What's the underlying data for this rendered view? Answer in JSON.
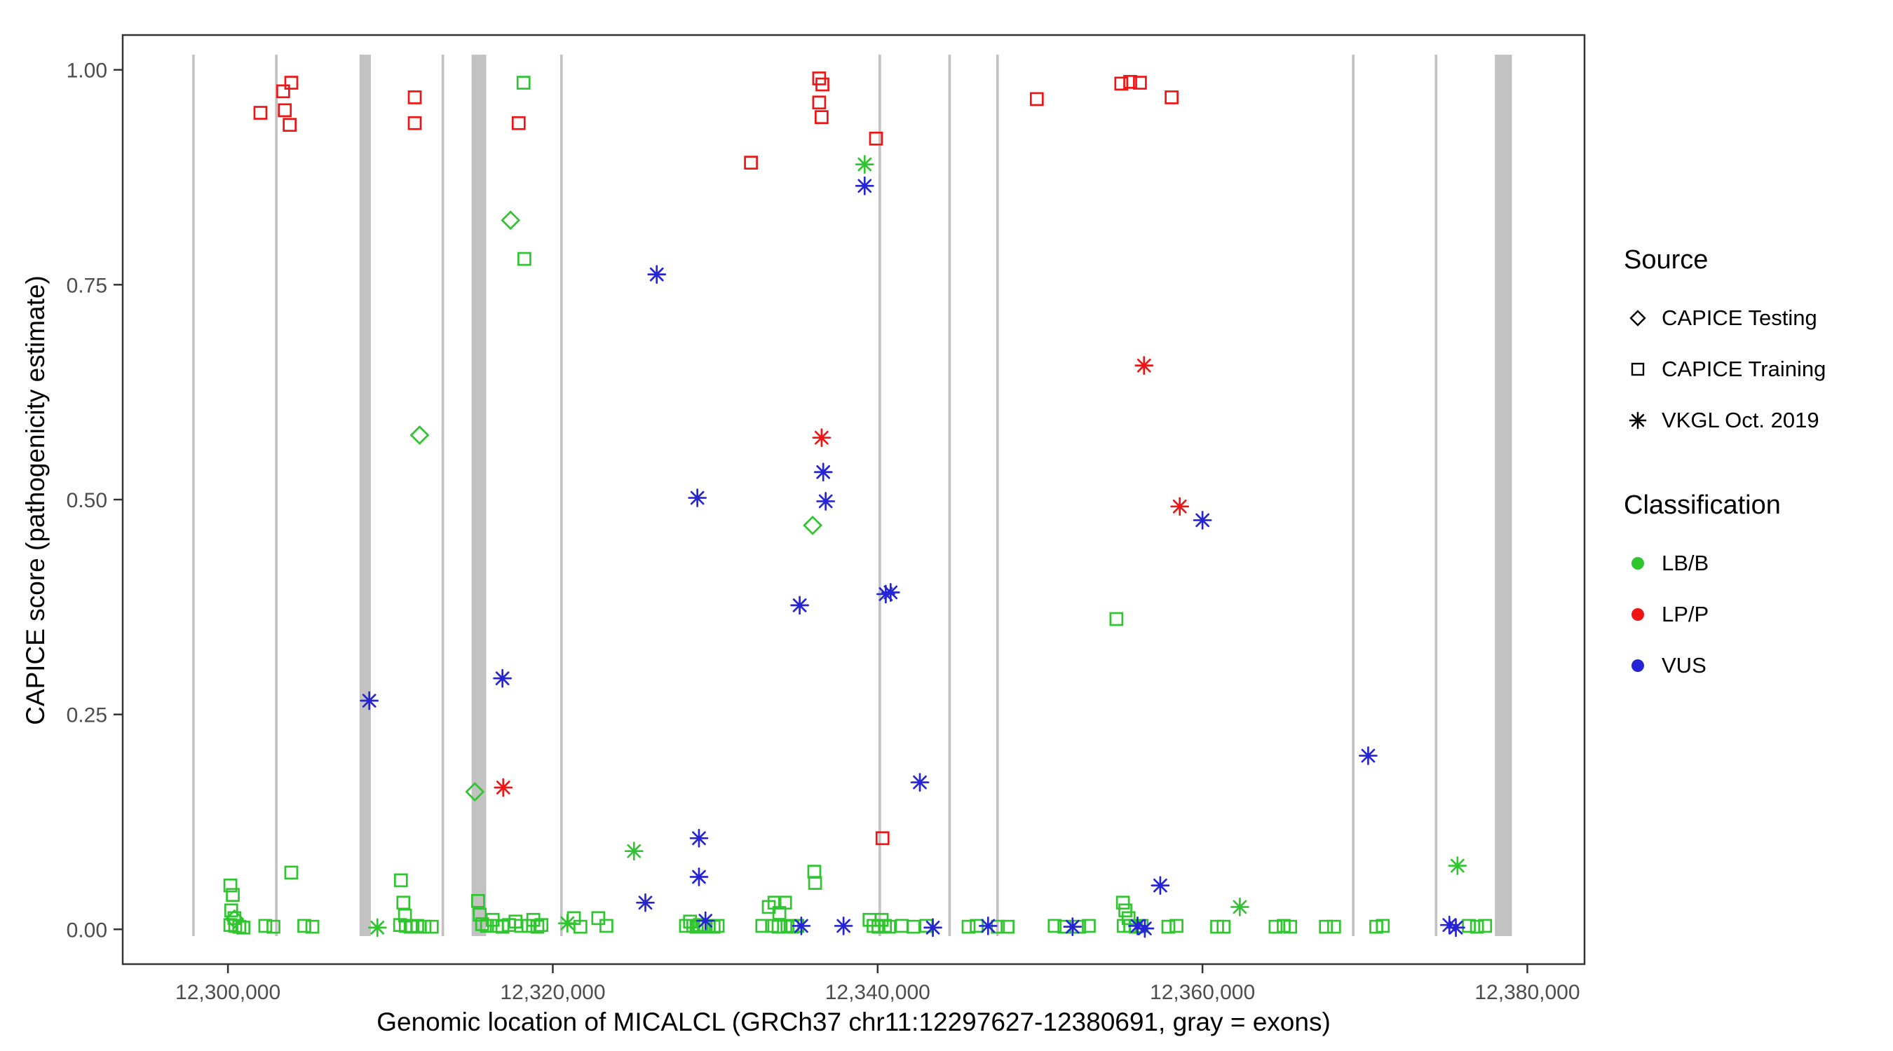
{
  "chart_data": {
    "type": "scatter",
    "title": "",
    "xlabel": "Genomic location of MICALCL (GRCh37 chr11:12297627-12380691, gray = exons)",
    "ylabel": "CAPICE score (pathogenicity estimate)",
    "xlim": [
      12293520,
      12383520
    ],
    "ylim": [
      -0.0405,
      1.0405
    ],
    "grid": "off",
    "legend_position": "right",
    "x_ticks": [
      12300000,
      12320000,
      12340000,
      12360000,
      12380000
    ],
    "x_tick_labels": [
      "12,300,000",
      "12,320,000",
      "12,340,000",
      "12,360,000",
      "12,380,000"
    ],
    "y_ticks": [
      0,
      0.25,
      0.5,
      0.75,
      1
    ],
    "y_tick_labels": [
      "0.00",
      "0.25",
      "0.50",
      "0.75",
      "1.00"
    ],
    "exon_color": "#C2C2C2",
    "panel_border_color": "#333333",
    "colors": {
      "LB/B": "#2FC52F",
      "LP/P": "#F01414",
      "VUS": "#2525D5"
    },
    "exons": [
      {
        "start": 12297800,
        "end": 12297950
      },
      {
        "start": 12302900,
        "end": 12303060
      },
      {
        "start": 12308100,
        "end": 12308800
      },
      {
        "start": 12313150,
        "end": 12313310
      },
      {
        "start": 12315000,
        "end": 12315900
      },
      {
        "start": 12320450,
        "end": 12320610
      },
      {
        "start": 12340050,
        "end": 12340210
      },
      {
        "start": 12344350,
        "end": 12344510
      },
      {
        "start": 12347300,
        "end": 12347460
      },
      {
        "start": 12369200,
        "end": 12369360
      },
      {
        "start": 12374300,
        "end": 12374460
      },
      {
        "start": 12378000,
        "end": 12379050
      }
    ],
    "series": [
      {
        "name": "CAPICE Testing / LB/B",
        "source": "CAPICE Testing",
        "classification": "LB/B",
        "shape": "diamond",
        "points": [
          [
            12300400,
            0.012
          ],
          [
            12311800,
            0.575
          ],
          [
            12315200,
            0.16
          ],
          [
            12317400,
            0.825
          ],
          [
            12336000,
            0.47
          ]
        ]
      },
      {
        "name": "CAPICE Training / LB/B",
        "source": "CAPICE Training",
        "classification": "LB/B",
        "shape": "square",
        "points": [
          [
            12300150,
            0.051
          ],
          [
            12300300,
            0.04
          ],
          [
            12300200,
            0.022
          ],
          [
            12300400,
            0.013
          ],
          [
            12300150,
            0.005
          ],
          [
            12300450,
            0.004
          ],
          [
            12300700,
            0.003
          ],
          [
            12300950,
            0.002
          ],
          [
            12302300,
            0.004
          ],
          [
            12302800,
            0.003
          ],
          [
            12303900,
            0.066
          ],
          [
            12304700,
            0.004
          ],
          [
            12305200,
            0.003
          ],
          [
            12310650,
            0.057
          ],
          [
            12310800,
            0.031
          ],
          [
            12310900,
            0.016
          ],
          [
            12310600,
            0.005
          ],
          [
            12310950,
            0.004
          ],
          [
            12311250,
            0.003
          ],
          [
            12311650,
            0.004
          ],
          [
            12312100,
            0.003
          ],
          [
            12312550,
            0.003
          ],
          [
            12315400,
            0.033
          ],
          [
            12315500,
            0.017
          ],
          [
            12315650,
            0.006
          ],
          [
            12315950,
            0.004
          ],
          [
            12316300,
            0.011
          ],
          [
            12316550,
            0.004
          ],
          [
            12316900,
            0.003
          ],
          [
            12317300,
            0.005
          ],
          [
            12317700,
            0.009
          ],
          [
            12318050,
            0.004
          ],
          [
            12318200,
            0.985
          ],
          [
            12318250,
            0.78
          ],
          [
            12318500,
            0.004
          ],
          [
            12318800,
            0.011
          ],
          [
            12319050,
            0.003
          ],
          [
            12319300,
            0.005
          ],
          [
            12321300,
            0.013
          ],
          [
            12321700,
            0.003
          ],
          [
            12322800,
            0.013
          ],
          [
            12323300,
            0.004
          ],
          [
            12328200,
            0.004
          ],
          [
            12328450,
            0.009
          ],
          [
            12328650,
            0.004
          ],
          [
            12328850,
            0.003
          ],
          [
            12329050,
            0.005
          ],
          [
            12329300,
            0.003
          ],
          [
            12329600,
            0.004
          ],
          [
            12329900,
            0.003
          ],
          [
            12330150,
            0.004
          ],
          [
            12332900,
            0.004
          ],
          [
            12333300,
            0.026
          ],
          [
            12333650,
            0.031
          ],
          [
            12333950,
            0.019
          ],
          [
            12333500,
            0.004
          ],
          [
            12333900,
            0.003
          ],
          [
            12334300,
            0.031
          ],
          [
            12334450,
            0.004
          ],
          [
            12334750,
            0.003
          ],
          [
            12335050,
            0.004
          ],
          [
            12336100,
            0.067
          ],
          [
            12336150,
            0.054
          ],
          [
            12339500,
            0.011
          ],
          [
            12339750,
            0.004
          ],
          [
            12340050,
            0.003
          ],
          [
            12340250,
            0.011
          ],
          [
            12340450,
            0.004
          ],
          [
            12340700,
            0.003
          ],
          [
            12341500,
            0.004
          ],
          [
            12342200,
            0.003
          ],
          [
            12343000,
            0.004
          ],
          [
            12345600,
            0.003
          ],
          [
            12346100,
            0.004
          ],
          [
            12347400,
            0.003
          ],
          [
            12348000,
            0.003
          ],
          [
            12350900,
            0.004
          ],
          [
            12351500,
            0.003
          ],
          [
            12352400,
            0.003
          ],
          [
            12353000,
            0.004
          ],
          [
            12354700,
            0.361
          ],
          [
            12355100,
            0.031
          ],
          [
            12355250,
            0.022
          ],
          [
            12355450,
            0.013
          ],
          [
            12355150,
            0.004
          ],
          [
            12355550,
            0.004
          ],
          [
            12355900,
            0.003
          ],
          [
            12356250,
            0.004
          ],
          [
            12357900,
            0.003
          ],
          [
            12358400,
            0.004
          ],
          [
            12360900,
            0.003
          ],
          [
            12361300,
            0.003
          ],
          [
            12364500,
            0.003
          ],
          [
            12365000,
            0.004
          ],
          [
            12365400,
            0.003
          ],
          [
            12367600,
            0.003
          ],
          [
            12368100,
            0.003
          ],
          [
            12370700,
            0.003
          ],
          [
            12371100,
            0.004
          ],
          [
            12376400,
            0.004
          ],
          [
            12376900,
            0.003
          ],
          [
            12377400,
            0.004
          ]
        ]
      },
      {
        "name": "CAPICE Training / LP/P",
        "source": "CAPICE Training",
        "classification": "LP/P",
        "shape": "square",
        "points": [
          [
            12302000,
            0.95
          ],
          [
            12303400,
            0.975
          ],
          [
            12303900,
            0.985
          ],
          [
            12303500,
            0.953
          ],
          [
            12303800,
            0.936
          ],
          [
            12311500,
            0.968
          ],
          [
            12311500,
            0.938
          ],
          [
            12317900,
            0.938
          ],
          [
            12332200,
            0.892
          ],
          [
            12336400,
            0.99
          ],
          [
            12336600,
            0.983
          ],
          [
            12336400,
            0.962
          ],
          [
            12336550,
            0.945
          ],
          [
            12339900,
            0.92
          ],
          [
            12340300,
            0.106
          ],
          [
            12349800,
            0.966
          ],
          [
            12355000,
            0.984
          ],
          [
            12355550,
            0.986
          ],
          [
            12356150,
            0.985
          ],
          [
            12358100,
            0.968
          ]
        ]
      },
      {
        "name": "VKGL Oct. 2019 / LB/B",
        "source": "VKGL Oct. 2019",
        "classification": "LB/B",
        "shape": "asterisk",
        "points": [
          [
            12309200,
            0.002
          ],
          [
            12320900,
            0.007
          ],
          [
            12325000,
            0.091
          ],
          [
            12339200,
            0.89
          ],
          [
            12362300,
            0.026
          ],
          [
            12375700,
            0.074
          ]
        ]
      },
      {
        "name": "VKGL Oct. 2019 / LP/P",
        "source": "VKGL Oct. 2019",
        "classification": "LP/P",
        "shape": "asterisk",
        "points": [
          [
            12316950,
            0.165
          ],
          [
            12336550,
            0.572
          ],
          [
            12356400,
            0.656
          ],
          [
            12358600,
            0.492
          ]
        ]
      },
      {
        "name": "VKGL Oct. 2019 / VUS",
        "source": "VKGL Oct. 2019",
        "classification": "VUS",
        "shape": "asterisk",
        "points": [
          [
            12308700,
            0.266
          ],
          [
            12316900,
            0.292
          ],
          [
            12325700,
            0.031
          ],
          [
            12326400,
            0.762
          ],
          [
            12328900,
            0.502
          ],
          [
            12329000,
            0.106
          ],
          [
            12329000,
            0.061
          ],
          [
            12329400,
            0.01
          ],
          [
            12335200,
            0.377
          ],
          [
            12335300,
            0.004
          ],
          [
            12336650,
            0.532
          ],
          [
            12336800,
            0.498
          ],
          [
            12337900,
            0.004
          ],
          [
            12339200,
            0.865
          ],
          [
            12340500,
            0.39
          ],
          [
            12340800,
            0.392
          ],
          [
            12342600,
            0.171
          ],
          [
            12343400,
            0.002
          ],
          [
            12346800,
            0.004
          ],
          [
            12352000,
            0.003
          ],
          [
            12356000,
            0.004
          ],
          [
            12356450,
            0.001
          ],
          [
            12357400,
            0.051
          ],
          [
            12360000,
            0.476
          ],
          [
            12370200,
            0.202
          ],
          [
            12375200,
            0.005
          ],
          [
            12375600,
            0.002
          ]
        ]
      }
    ]
  },
  "legend": {
    "source": {
      "title": "Source",
      "items": [
        {
          "label": "CAPICE Testing",
          "shape": "diamond"
        },
        {
          "label": "CAPICE Training",
          "shape": "square"
        },
        {
          "label": "VKGL Oct. 2019",
          "shape": "asterisk"
        }
      ]
    },
    "classification": {
      "title": "Classification",
      "items": [
        {
          "label": "LB/B",
          "color": "#2FC52F"
        },
        {
          "label": "LP/P",
          "color": "#F01414"
        },
        {
          "label": "VUS",
          "color": "#2525D5"
        }
      ]
    }
  }
}
